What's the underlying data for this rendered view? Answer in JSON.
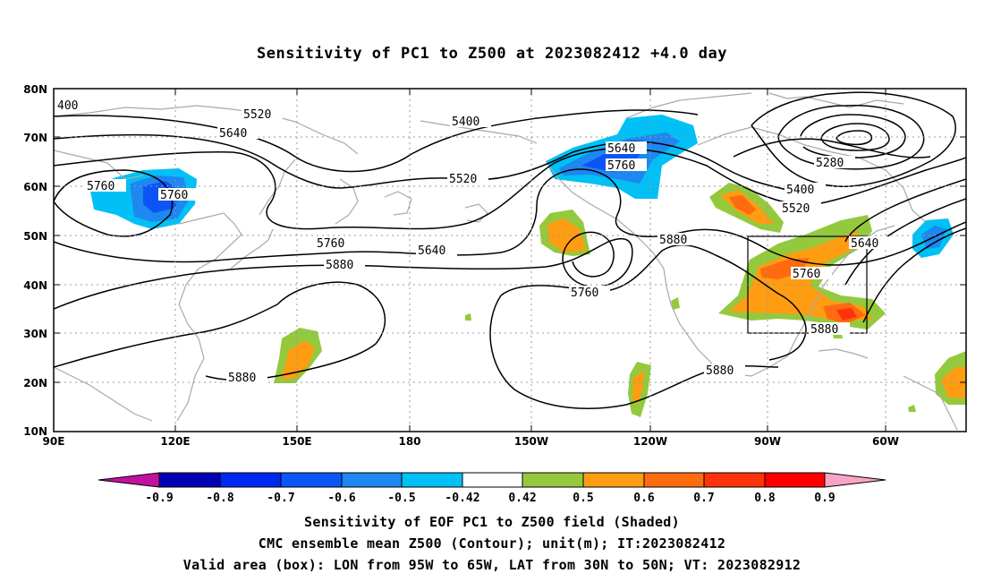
{
  "title": "Sensitivity of PC1 to Z500 at 2023082412 +4.0 day",
  "axes": {
    "lat_labels": [
      "80N",
      "70N",
      "60N",
      "50N",
      "40N",
      "30N",
      "20N",
      "10N"
    ],
    "lon_labels": [
      "90E",
      "120E",
      "150E",
      "180",
      "150W",
      "120W",
      "90W",
      "60W"
    ]
  },
  "contour_labels": {
    "c400": "400",
    "c5520a": "5520",
    "c5640a": "5640",
    "c5400": "5400",
    "c5760a": "5760",
    "c5760b": "5760",
    "c5520b": "5520",
    "c5640b": "5640",
    "c5760c": "5760",
    "c5760d": "5760",
    "c5880a": "5880",
    "c5640c": "5640",
    "c5760e": "5760",
    "c5880b": "5880",
    "c5880c": "5880",
    "c5280": "5280",
    "c5400b": "5400",
    "c5520c": "5520",
    "c5640d": "5640",
    "c5760f": "5760",
    "c5880d": "5880",
    "c5880e": "5880"
  },
  "colorbar": {
    "labels": [
      "-0.9",
      "-0.8",
      "-0.7",
      "-0.6",
      "-0.5",
      "-0.42",
      "0.42",
      "0.5",
      "0.6",
      "0.7",
      "0.8",
      "0.9"
    ],
    "colors": [
      "#c3119f",
      "#0000b4",
      "#0028ef",
      "#0b55f6",
      "#1e87f0",
      "#00c0f5",
      "#ffffff",
      "#94c93e",
      "#fe9c12",
      "#fe6b10",
      "#fe330c",
      "#fe0000",
      "#f8a4c6"
    ]
  },
  "captions": {
    "line1": "Sensitivity of EOF PC1 to Z500 field (Shaded)",
    "line2": "CMC ensemble mean Z500 (Contour); unit(m); IT:2023082412",
    "line3": "Valid area (box): LON from 95W to 65W, LAT from 30N to 50N; VT: 2023082912"
  }
}
